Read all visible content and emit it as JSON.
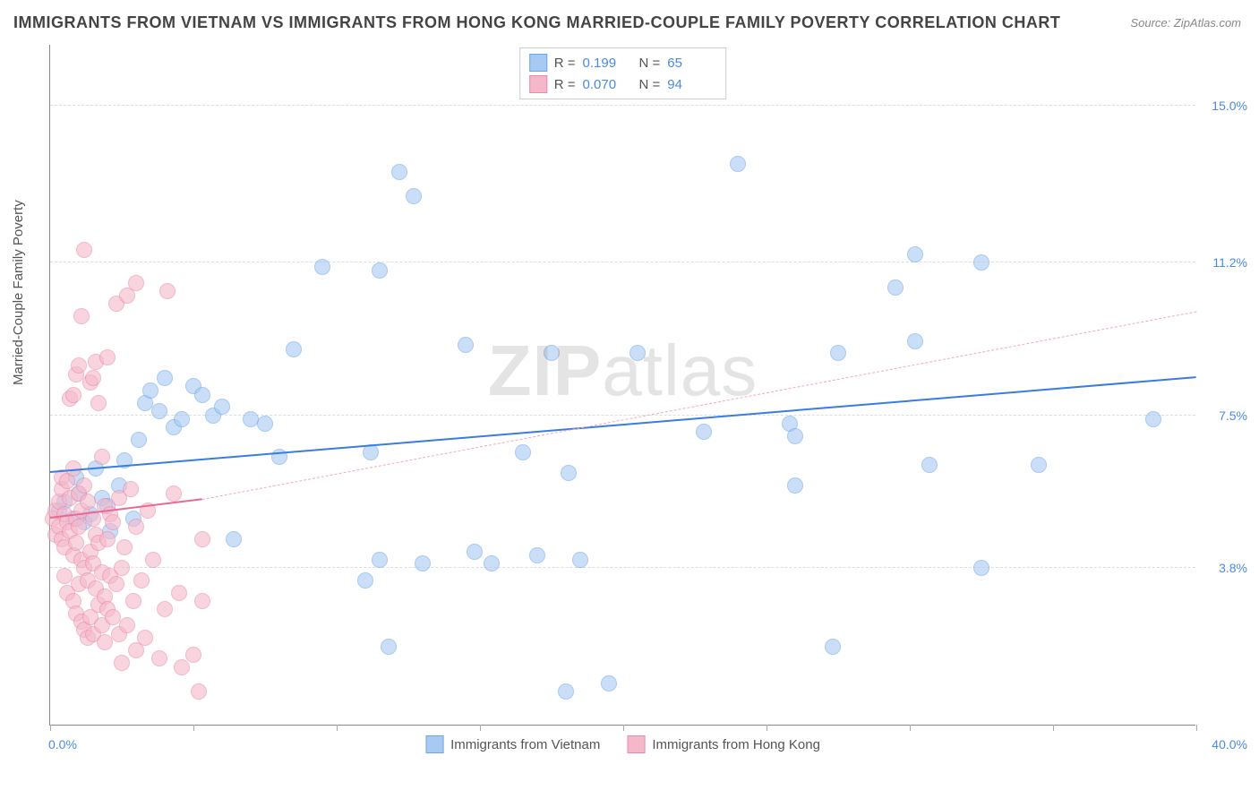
{
  "title": "IMMIGRANTS FROM VIETNAM VS IMMIGRANTS FROM HONG KONG MARRIED-COUPLE FAMILY POVERTY CORRELATION CHART",
  "source": "Source: ZipAtlas.com",
  "watermark_a": "ZIP",
  "watermark_b": "atlas",
  "ylabel": "Married-Couple Family Poverty",
  "chart": {
    "type": "scatter",
    "background_color": "#ffffff",
    "grid_color": "#dddddd",
    "axis_color": "#888888",
    "xlim": [
      0.0,
      40.0
    ],
    "ylim": [
      0.0,
      16.5
    ],
    "x_min_label": "0.0%",
    "x_max_label": "40.0%",
    "x_ticks": [
      0,
      5,
      10,
      15,
      20,
      25,
      30,
      35,
      40
    ],
    "y_grid": [
      {
        "value": 3.8,
        "label": "3.8%"
      },
      {
        "value": 7.5,
        "label": "7.5%"
      },
      {
        "value": 11.2,
        "label": "11.2%"
      },
      {
        "value": 15.0,
        "label": "15.0%"
      }
    ],
    "label_fontsize": 15,
    "tick_color": "#4a8ae8",
    "series": [
      {
        "name": "Immigrants from Vietnam",
        "color_fill": "#a8caf2",
        "color_stroke": "#6da6e8",
        "fill_opacity": 0.6,
        "marker_size": 18,
        "R": "0.199",
        "N": "65",
        "regression": {
          "x1": 0.0,
          "y1": 6.1,
          "x2": 40.0,
          "y2": 8.4,
          "color": "#3a7de0",
          "width": 2,
          "dash": "solid"
        },
        "regression_extrap": null,
        "points": [
          [
            0.3,
            5.2
          ],
          [
            0.5,
            5.4
          ],
          [
            0.8,
            5.0
          ],
          [
            1.0,
            5.6
          ],
          [
            1.2,
            4.9
          ],
          [
            0.9,
            6.0
          ],
          [
            1.4,
            5.1
          ],
          [
            1.6,
            6.2
          ],
          [
            1.8,
            5.5
          ],
          [
            2.0,
            5.3
          ],
          [
            2.1,
            4.7
          ],
          [
            2.4,
            5.8
          ],
          [
            2.6,
            6.4
          ],
          [
            2.9,
            5.0
          ],
          [
            3.1,
            6.9
          ],
          [
            3.3,
            7.8
          ],
          [
            3.5,
            8.1
          ],
          [
            3.8,
            7.6
          ],
          [
            4.0,
            8.4
          ],
          [
            4.3,
            7.2
          ],
          [
            4.6,
            7.4
          ],
          [
            5.0,
            8.2
          ],
          [
            5.3,
            8.0
          ],
          [
            5.7,
            7.5
          ],
          [
            6.0,
            7.7
          ],
          [
            6.4,
            4.5
          ],
          [
            7.0,
            7.4
          ],
          [
            7.5,
            7.3
          ],
          [
            8.0,
            6.5
          ],
          [
            8.5,
            9.1
          ],
          [
            9.5,
            11.1
          ],
          [
            11.0,
            3.5
          ],
          [
            11.2,
            6.6
          ],
          [
            11.5,
            11.0
          ],
          [
            11.5,
            4.0
          ],
          [
            11.8,
            1.9
          ],
          [
            12.2,
            13.4
          ],
          [
            13.0,
            3.9
          ],
          [
            12.7,
            12.8
          ],
          [
            14.5,
            9.2
          ],
          [
            14.8,
            4.2
          ],
          [
            15.4,
            3.9
          ],
          [
            16.5,
            6.6
          ],
          [
            17.0,
            4.1
          ],
          [
            17.5,
            9.0
          ],
          [
            18.0,
            0.8
          ],
          [
            18.1,
            6.1
          ],
          [
            18.5,
            4.0
          ],
          [
            19.5,
            1.0
          ],
          [
            20.5,
            9.0
          ],
          [
            22.8,
            7.1
          ],
          [
            24.0,
            13.6
          ],
          [
            25.8,
            7.3
          ],
          [
            26.0,
            7.0
          ],
          [
            26.0,
            5.8
          ],
          [
            27.3,
            1.9
          ],
          [
            27.5,
            9.0
          ],
          [
            29.5,
            10.6
          ],
          [
            30.2,
            11.4
          ],
          [
            30.2,
            9.3
          ],
          [
            30.7,
            6.3
          ],
          [
            32.5,
            3.8
          ],
          [
            32.5,
            11.2
          ],
          [
            34.5,
            6.3
          ],
          [
            38.5,
            7.4
          ]
        ]
      },
      {
        "name": "Immigrants from Hong Kong",
        "color_fill": "#f5b8cb",
        "color_stroke": "#ec89a9",
        "fill_opacity": 0.6,
        "marker_size": 18,
        "R": "0.070",
        "N": "94",
        "regression": {
          "x1": 0.0,
          "y1": 5.0,
          "x2": 5.3,
          "y2": 5.45,
          "color": "#e86a93",
          "width": 2,
          "dash": "solid"
        },
        "regression_extrap": {
          "x1": 5.3,
          "y1": 5.45,
          "x2": 40.0,
          "y2": 10.0,
          "color": "#f0a9bf",
          "width": 1,
          "dash": "4,4"
        },
        "points": [
          [
            0.1,
            5.0
          ],
          [
            0.2,
            5.2
          ],
          [
            0.2,
            4.6
          ],
          [
            0.3,
            4.8
          ],
          [
            0.3,
            5.4
          ],
          [
            0.4,
            4.5
          ],
          [
            0.4,
            5.7
          ],
          [
            0.4,
            6.0
          ],
          [
            0.5,
            5.1
          ],
          [
            0.5,
            4.3
          ],
          [
            0.5,
            3.6
          ],
          [
            0.6,
            4.9
          ],
          [
            0.6,
            5.9
          ],
          [
            0.6,
            3.2
          ],
          [
            0.7,
            4.7
          ],
          [
            0.7,
            5.5
          ],
          [
            0.7,
            7.9
          ],
          [
            0.8,
            3.0
          ],
          [
            0.8,
            4.1
          ],
          [
            0.8,
            6.2
          ],
          [
            0.8,
            8.0
          ],
          [
            0.9,
            2.7
          ],
          [
            0.9,
            4.4
          ],
          [
            0.9,
            5.0
          ],
          [
            0.9,
            8.5
          ],
          [
            1.0,
            3.4
          ],
          [
            1.0,
            4.8
          ],
          [
            1.0,
            5.6
          ],
          [
            1.0,
            8.7
          ],
          [
            1.1,
            2.5
          ],
          [
            1.1,
            4.0
          ],
          [
            1.1,
            5.2
          ],
          [
            1.1,
            9.9
          ],
          [
            1.2,
            2.3
          ],
          [
            1.2,
            3.8
          ],
          [
            1.2,
            5.8
          ],
          [
            1.2,
            11.5
          ],
          [
            1.3,
            2.1
          ],
          [
            1.3,
            3.5
          ],
          [
            1.3,
            5.4
          ],
          [
            1.4,
            2.6
          ],
          [
            1.4,
            4.2
          ],
          [
            1.4,
            8.3
          ],
          [
            1.5,
            2.2
          ],
          [
            1.5,
            3.9
          ],
          [
            1.5,
            5.0
          ],
          [
            1.5,
            8.4
          ],
          [
            1.6,
            3.3
          ],
          [
            1.6,
            4.6
          ],
          [
            1.6,
            8.8
          ],
          [
            1.7,
            2.9
          ],
          [
            1.7,
            4.4
          ],
          [
            1.7,
            7.8
          ],
          [
            1.8,
            2.4
          ],
          [
            1.8,
            3.7
          ],
          [
            1.8,
            6.5
          ],
          [
            1.9,
            2.0
          ],
          [
            1.9,
            3.1
          ],
          [
            1.9,
            5.3
          ],
          [
            2.0,
            2.8
          ],
          [
            2.0,
            4.5
          ],
          [
            2.0,
            8.9
          ],
          [
            2.1,
            3.6
          ],
          [
            2.1,
            5.1
          ],
          [
            2.2,
            2.6
          ],
          [
            2.2,
            4.9
          ],
          [
            2.3,
            3.4
          ],
          [
            2.3,
            10.2
          ],
          [
            2.4,
            2.2
          ],
          [
            2.4,
            5.5
          ],
          [
            2.5,
            1.5
          ],
          [
            2.5,
            3.8
          ],
          [
            2.6,
            4.3
          ],
          [
            2.7,
            2.4
          ],
          [
            2.7,
            10.4
          ],
          [
            2.8,
            5.7
          ],
          [
            2.9,
            3.0
          ],
          [
            3.0,
            1.8
          ],
          [
            3.0,
            4.8
          ],
          [
            3.0,
            10.7
          ],
          [
            3.2,
            3.5
          ],
          [
            3.3,
            2.1
          ],
          [
            3.4,
            5.2
          ],
          [
            3.6,
            4.0
          ],
          [
            3.8,
            1.6
          ],
          [
            4.0,
            2.8
          ],
          [
            4.1,
            10.5
          ],
          [
            4.3,
            5.6
          ],
          [
            4.5,
            3.2
          ],
          [
            4.6,
            1.4
          ],
          [
            5.0,
            1.7
          ],
          [
            5.2,
            0.8
          ],
          [
            5.3,
            4.5
          ],
          [
            5.3,
            3.0
          ]
        ]
      }
    ]
  },
  "legend": {
    "r_label": "R  =",
    "n_label": "N  ="
  }
}
